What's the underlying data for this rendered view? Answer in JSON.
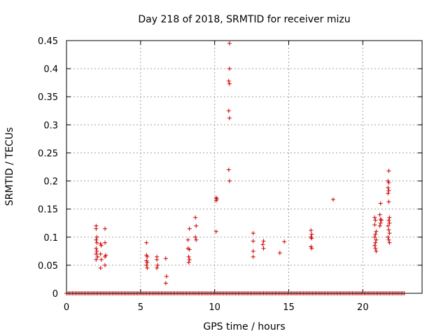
{
  "chart_data": {
    "type": "scatter",
    "title": "Day 218 of 2018, SRMTID for receiver mizu",
    "xlabel": "GPS time / hours",
    "ylabel": "SRMTID / TECUs",
    "xlim": [
      0,
      24
    ],
    "ylim": [
      0,
      0.45
    ],
    "xticks": [
      0,
      5,
      10,
      15,
      20
    ],
    "xtick_labels": [
      "0",
      "5",
      "10",
      "15",
      "20"
    ],
    "yticks": [
      0,
      0.05,
      0.1,
      0.15,
      0.2,
      0.25,
      0.3,
      0.35,
      0.4,
      0.45
    ],
    "ytick_labels": [
      "0",
      "0.05",
      "0.1",
      "0.15",
      "0.2",
      "0.25",
      "0.3",
      "0.35",
      "0.4",
      "0.45"
    ],
    "grid": true,
    "marker": "plus",
    "colors": {
      "marker": "#cc0000",
      "grid": "#a0a0a0",
      "axis": "#000000"
    },
    "baseline": {
      "y": 0,
      "x_start": 0,
      "x_end": 22.8,
      "step": 0.1
    },
    "points": [
      [
        2.0,
        0.12
      ],
      [
        2.0,
        0.115
      ],
      [
        2.05,
        0.1
      ],
      [
        2.0,
        0.095
      ],
      [
        2.05,
        0.09
      ],
      [
        2.0,
        0.08
      ],
      [
        2.05,
        0.075
      ],
      [
        2.0,
        0.07
      ],
      [
        2.1,
        0.065
      ],
      [
        2.0,
        0.06
      ],
      [
        2.3,
        0.088
      ],
      [
        2.35,
        0.085
      ],
      [
        2.3,
        0.07
      ],
      [
        2.35,
        0.06
      ],
      [
        2.3,
        0.045
      ],
      [
        2.6,
        0.115
      ],
      [
        2.6,
        0.09
      ],
      [
        2.65,
        0.068
      ],
      [
        2.6,
        0.065
      ],
      [
        2.6,
        0.05
      ],
      [
        5.4,
        0.09
      ],
      [
        5.4,
        0.068
      ],
      [
        5.45,
        0.065
      ],
      [
        5.4,
        0.058
      ],
      [
        5.45,
        0.055
      ],
      [
        5.4,
        0.05
      ],
      [
        5.45,
        0.045
      ],
      [
        6.1,
        0.065
      ],
      [
        6.1,
        0.06
      ],
      [
        6.15,
        0.05
      ],
      [
        6.1,
        0.045
      ],
      [
        6.7,
        0.062
      ],
      [
        6.75,
        0.03
      ],
      [
        6.7,
        0.018
      ],
      [
        8.2,
        0.095
      ],
      [
        8.3,
        0.115
      ],
      [
        8.2,
        0.08
      ],
      [
        8.3,
        0.078
      ],
      [
        8.25,
        0.065
      ],
      [
        8.3,
        0.06
      ],
      [
        8.25,
        0.055
      ],
      [
        8.7,
        0.135
      ],
      [
        8.75,
        0.12
      ],
      [
        8.7,
        0.1
      ],
      [
        8.75,
        0.095
      ],
      [
        10.1,
        0.17
      ],
      [
        10.15,
        0.168
      ],
      [
        10.1,
        0.165
      ],
      [
        10.1,
        0.11
      ],
      [
        11.0,
        0.445
      ],
      [
        11.0,
        0.4
      ],
      [
        10.95,
        0.378
      ],
      [
        11.0,
        0.373
      ],
      [
        10.95,
        0.325
      ],
      [
        11.0,
        0.312
      ],
      [
        10.95,
        0.22
      ],
      [
        11.0,
        0.2
      ],
      [
        12.6,
        0.107
      ],
      [
        12.6,
        0.093
      ],
      [
        12.6,
        0.075
      ],
      [
        12.6,
        0.065
      ],
      [
        13.3,
        0.093
      ],
      [
        13.25,
        0.087
      ],
      [
        13.3,
        0.08
      ],
      [
        14.4,
        0.072
      ],
      [
        14.7,
        0.092
      ],
      [
        16.5,
        0.112
      ],
      [
        16.55,
        0.105
      ],
      [
        16.5,
        0.1
      ],
      [
        16.55,
        0.098
      ],
      [
        16.5,
        0.083
      ],
      [
        16.55,
        0.08
      ],
      [
        18.0,
        0.167
      ],
      [
        20.8,
        0.135
      ],
      [
        20.85,
        0.13
      ],
      [
        20.8,
        0.122
      ],
      [
        20.9,
        0.11
      ],
      [
        20.85,
        0.105
      ],
      [
        20.8,
        0.1
      ],
      [
        20.9,
        0.095
      ],
      [
        20.85,
        0.09
      ],
      [
        20.8,
        0.085
      ],
      [
        20.85,
        0.08
      ],
      [
        20.9,
        0.075
      ],
      [
        21.2,
        0.16
      ],
      [
        21.15,
        0.14
      ],
      [
        21.2,
        0.132
      ],
      [
        21.25,
        0.13
      ],
      [
        21.2,
        0.125
      ],
      [
        21.15,
        0.12
      ],
      [
        21.75,
        0.218
      ],
      [
        21.7,
        0.2
      ],
      [
        21.75,
        0.197
      ],
      [
        21.7,
        0.188
      ],
      [
        21.75,
        0.183
      ],
      [
        21.7,
        0.178
      ],
      [
        21.75,
        0.163
      ],
      [
        21.8,
        0.135
      ],
      [
        21.75,
        0.13
      ],
      [
        21.8,
        0.125
      ],
      [
        21.7,
        0.12
      ],
      [
        21.75,
        0.113
      ],
      [
        21.8,
        0.107
      ],
      [
        21.7,
        0.1
      ],
      [
        21.75,
        0.095
      ],
      [
        21.8,
        0.09
      ]
    ]
  }
}
